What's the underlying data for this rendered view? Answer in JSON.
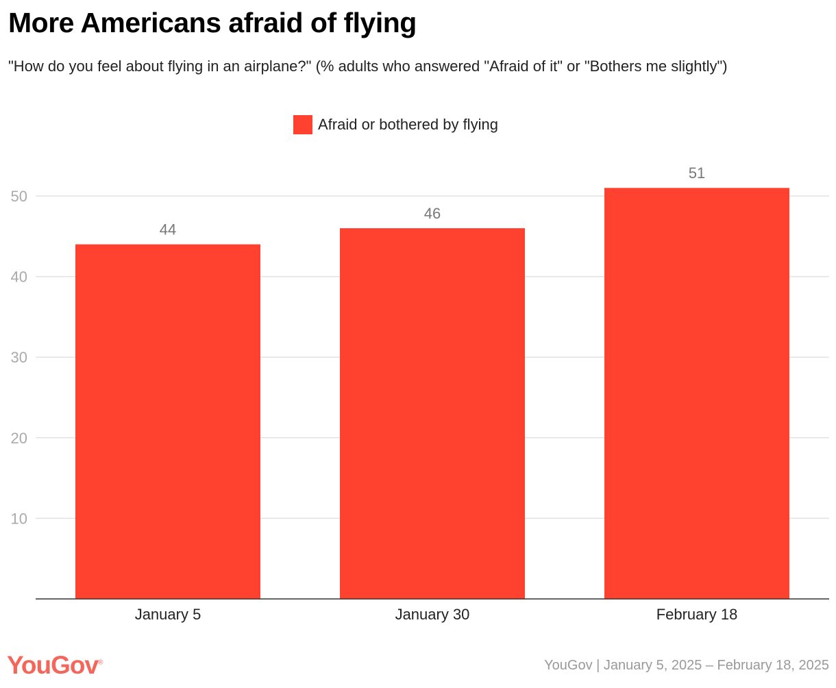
{
  "chart_data": {
    "type": "bar",
    "title": "More Americans afraid of flying",
    "subtitle": "\"How do you feel about flying in an airplane?\" (% adults who answered \"Afraid of it\" or \"Bothers me slightly\")",
    "categories": [
      "January 5",
      "January 30",
      "February 18"
    ],
    "series": [
      {
        "name": "Afraid or bothered by flying",
        "values": [
          44,
          46,
          51
        ],
        "color": "#FF422F"
      }
    ],
    "yticks": [
      10,
      20,
      30,
      40,
      50
    ],
    "ylim": [
      0,
      50
    ],
    "xlabel": "",
    "ylabel": "",
    "grid": true,
    "legend_position": "top-center"
  },
  "footer": {
    "logo": "YouGov",
    "source": "YouGov | January 5, 2025 – February 18, 2025"
  }
}
